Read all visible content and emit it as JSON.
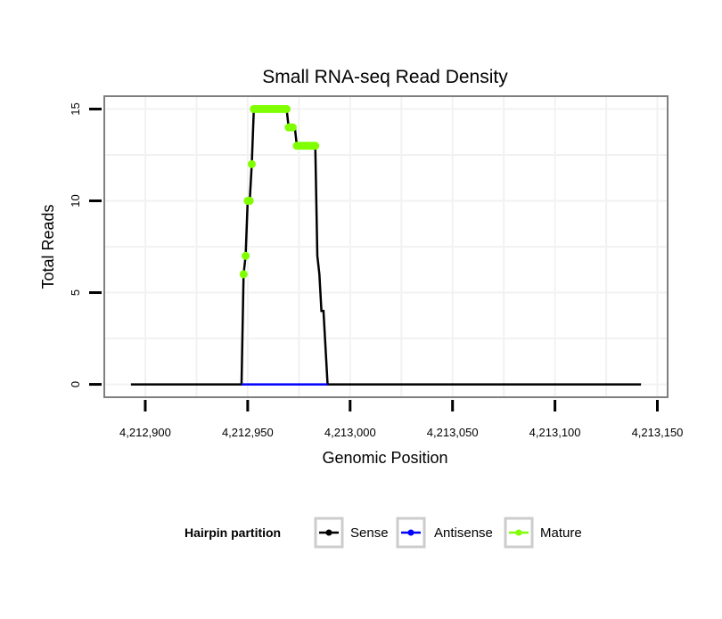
{
  "chart_data": {
    "type": "line",
    "title": "Small RNA-seq Read Density",
    "xlabel": "Genomic Position",
    "ylabel": "Total Reads",
    "xlim": [
      4212880,
      4213155
    ],
    "ylim": [
      -0.7,
      15.7
    ],
    "x_ticks": [
      4212900,
      4212950,
      4213000,
      4213050,
      4213100,
      4213150
    ],
    "x_tick_labels": [
      "4,212,900",
      "4,212,950",
      "4,213,000",
      "4,213,050",
      "4,213,100",
      "4,213,150"
    ],
    "y_ticks": [
      0,
      5,
      10,
      15
    ],
    "y_tick_labels": [
      "0",
      "5",
      "10",
      "15"
    ],
    "grid": true,
    "legend": {
      "title": "Hairpin partition",
      "placement": "bottom",
      "entries": [
        "Sense",
        "Antisense",
        "Mature"
      ]
    },
    "series": [
      {
        "name": "Sense",
        "color": "#000000",
        "points": [
          [
            4212893,
            0
          ],
          [
            4212947,
            0
          ],
          [
            4212948,
            6
          ],
          [
            4212949,
            7
          ],
          [
            4212950,
            10
          ],
          [
            4212951,
            10
          ],
          [
            4212952,
            12
          ],
          [
            4212953,
            15
          ],
          [
            4212969,
            15
          ],
          [
            4212970,
            14
          ],
          [
            4212973,
            14
          ],
          [
            4212974,
            13
          ],
          [
            4212983,
            13
          ],
          [
            4212984,
            7
          ],
          [
            4212985,
            6
          ],
          [
            4212986,
            4
          ],
          [
            4212987,
            4
          ],
          [
            4212989,
            0
          ],
          [
            4213142,
            0
          ]
        ]
      },
      {
        "name": "Antisense",
        "color": "#0000ff",
        "points": [
          [
            4212947,
            0
          ],
          [
            4212989,
            0
          ]
        ]
      },
      {
        "name": "Mature",
        "color": "#7fff00",
        "points": [
          [
            4212948,
            6
          ],
          [
            4212949,
            7
          ],
          [
            4212950,
            10
          ],
          [
            4212951,
            10
          ],
          [
            4212952,
            12
          ],
          [
            4212953,
            15
          ],
          [
            4212954,
            15
          ],
          [
            4212955,
            15
          ],
          [
            4212956,
            15
          ],
          [
            4212957,
            15
          ],
          [
            4212958,
            15
          ],
          [
            4212959,
            15
          ],
          [
            4212960,
            15
          ],
          [
            4212961,
            15
          ],
          [
            4212962,
            15
          ],
          [
            4212963,
            15
          ],
          [
            4212964,
            15
          ],
          [
            4212965,
            15
          ],
          [
            4212966,
            15
          ],
          [
            4212967,
            15
          ],
          [
            4212968,
            15
          ],
          [
            4212969,
            15
          ],
          [
            4212970,
            14
          ],
          [
            4212971,
            14
          ],
          [
            4212972,
            14
          ],
          [
            4212974,
            13
          ],
          [
            4212975,
            13
          ],
          [
            4212976,
            13
          ],
          [
            4212977,
            13
          ],
          [
            4212978,
            13
          ],
          [
            4212979,
            13
          ],
          [
            4212980,
            13
          ],
          [
            4212981,
            13
          ],
          [
            4212982,
            13
          ],
          [
            4212983,
            13
          ]
        ]
      }
    ]
  }
}
